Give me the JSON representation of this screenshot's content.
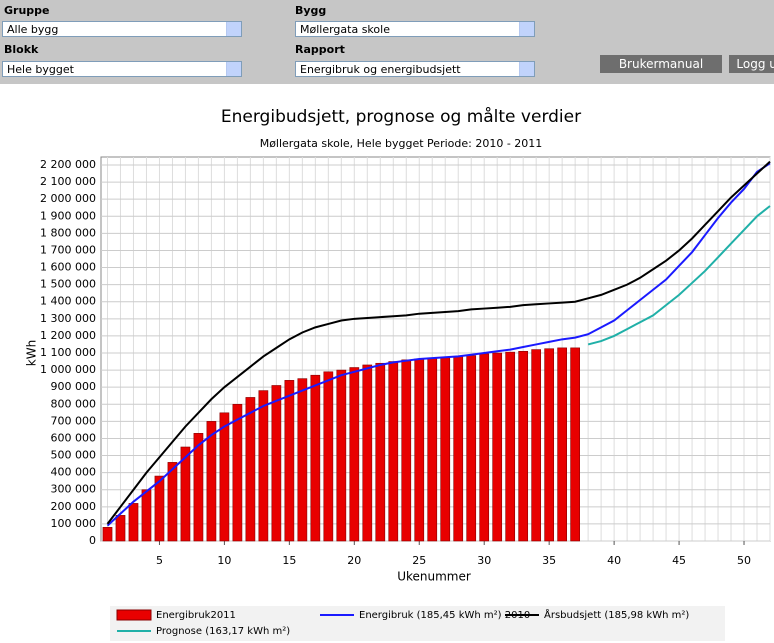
{
  "header": {
    "fields": [
      {
        "label": "Gruppe",
        "value": "Alle bygg"
      },
      {
        "label": "Bygg",
        "value": "Møllergata skole"
      },
      {
        "label": "Blokk",
        "value": "Hele bygget"
      },
      {
        "label": "Rapport",
        "value": "Energibruk og energibudsjett"
      }
    ],
    "buttons": [
      "Brukermanual",
      "Logg ut"
    ]
  },
  "chart_data": {
    "type": "bar",
    "title": "Energibudsjett, prognose og målte verdier",
    "subtitle": "Møllergata skole, Hele bygget Periode: 2010 - 2011",
    "x_label": "Ukenummer",
    "y_label": "kWh",
    "x": [
      1,
      2,
      3,
      4,
      5,
      6,
      7,
      8,
      9,
      10,
      11,
      12,
      13,
      14,
      15,
      16,
      17,
      18,
      19,
      20,
      21,
      22,
      23,
      24,
      25,
      26,
      27,
      28,
      29,
      30,
      31,
      32,
      33,
      34,
      35,
      36,
      37,
      38,
      39,
      40,
      41,
      42,
      43,
      44,
      45,
      46,
      47,
      48,
      49,
      50,
      51,
      52
    ],
    "xlim": [
      0.5,
      52
    ],
    "xticks": [
      5,
      10,
      15,
      20,
      25,
      30,
      35,
      40,
      45,
      50
    ],
    "ylim": [
      0,
      2200000
    ],
    "yticks": [
      0,
      {
        "value": 100000,
        "label": "100 000"
      },
      {
        "value": 200000,
        "label": "200 000"
      },
      {
        "value": 300000,
        "label": "300 000"
      },
      {
        "value": 400000,
        "label": "400 000"
      },
      {
        "value": 500000,
        "label": "500 000"
      },
      {
        "value": 600000,
        "label": "600 000"
      },
      {
        "value": 700000,
        "label": "700 000"
      },
      {
        "value": 800000,
        "label": "800 000"
      },
      {
        "value": 900000,
        "label": "900 000"
      },
      {
        "value": 1000000,
        "label": "1 000 000"
      },
      {
        "value": 1100000,
        "label": "1 100 000"
      },
      {
        "value": 1200000,
        "label": "1 200 000"
      },
      {
        "value": 1300000,
        "label": "1 300 000"
      },
      {
        "value": 1400000,
        "label": "1 400 000"
      },
      {
        "value": 1500000,
        "label": "1 500 000"
      },
      {
        "value": 1600000,
        "label": "1 600 000"
      },
      {
        "value": 1700000,
        "label": "1 700 000"
      },
      {
        "value": 1800000,
        "label": "1 800 000"
      },
      {
        "value": 1900000,
        "label": "1 900 000"
      },
      {
        "value": 2000000,
        "label": "2 000 000"
      },
      {
        "value": 2100000,
        "label": "2 100 000"
      },
      {
        "value": 2200000,
        "label": "2 200 000"
      }
    ],
    "grid": true,
    "legend": "bottom",
    "series": [
      {
        "name": "Energibruk2011",
        "type": "bar",
        "color": "#e80000",
        "values": [
          80000,
          150000,
          220000,
          300000,
          380000,
          460000,
          550000,
          630000,
          700000,
          750000,
          800000,
          840000,
          880000,
          910000,
          940000,
          950000,
          970000,
          990000,
          1000000,
          1015000,
          1030000,
          1040000,
          1050000,
          1060000,
          1065000,
          1070000,
          1075000,
          1080000,
          1085000,
          1095000,
          1100000,
          1105000,
          1110000,
          1120000,
          1125000,
          1130000,
          1130000,
          null,
          null,
          null,
          null,
          null,
          null,
          null,
          null,
          null,
          null,
          null,
          null,
          null,
          null,
          null
        ]
      },
      {
        "name": "Energibruk (185,45 kWh m²) 2010",
        "type": "line",
        "color": "#1a1aff",
        "values": [
          90000,
          160000,
          230000,
          290000,
          350000,
          420000,
          490000,
          560000,
          620000,
          670000,
          710000,
          750000,
          790000,
          820000,
          850000,
          880000,
          910000,
          940000,
          970000,
          990000,
          1010000,
          1030000,
          1045000,
          1055000,
          1065000,
          1070000,
          1075000,
          1080000,
          1090000,
          1100000,
          1110000,
          1120000,
          1135000,
          1150000,
          1165000,
          1180000,
          1190000,
          1210000,
          1250000,
          1290000,
          1350000,
          1410000,
          1470000,
          1530000,
          1610000,
          1690000,
          1790000,
          1890000,
          1980000,
          2060000,
          2160000,
          2210000
        ]
      },
      {
        "name": "Årsbudsjett (185,98 kWh m²)",
        "type": "line",
        "color": "#000000",
        "values": [
          100000,
          200000,
          300000,
          400000,
          490000,
          580000,
          670000,
          750000,
          830000,
          900000,
          960000,
          1020000,
          1080000,
          1130000,
          1180000,
          1220000,
          1250000,
          1270000,
          1290000,
          1300000,
          1305000,
          1310000,
          1315000,
          1320000,
          1330000,
          1335000,
          1340000,
          1345000,
          1355000,
          1360000,
          1365000,
          1370000,
          1380000,
          1385000,
          1390000,
          1395000,
          1400000,
          1420000,
          1440000,
          1470000,
          1500000,
          1540000,
          1590000,
          1640000,
          1700000,
          1770000,
          1850000,
          1930000,
          2010000,
          2080000,
          2150000,
          2220000
        ]
      },
      {
        "name": "Prognose (163,17 kWh m²)",
        "type": "line",
        "color": "#20b0a8",
        "values": [
          null,
          null,
          null,
          null,
          null,
          null,
          null,
          null,
          null,
          null,
          null,
          null,
          null,
          null,
          null,
          null,
          null,
          null,
          null,
          null,
          null,
          null,
          null,
          null,
          null,
          null,
          null,
          null,
          null,
          null,
          null,
          null,
          null,
          null,
          null,
          null,
          null,
          1150000,
          1170000,
          1200000,
          1240000,
          1280000,
          1320000,
          1380000,
          1440000,
          1510000,
          1580000,
          1660000,
          1740000,
          1820000,
          1900000,
          1960000
        ]
      }
    ]
  }
}
